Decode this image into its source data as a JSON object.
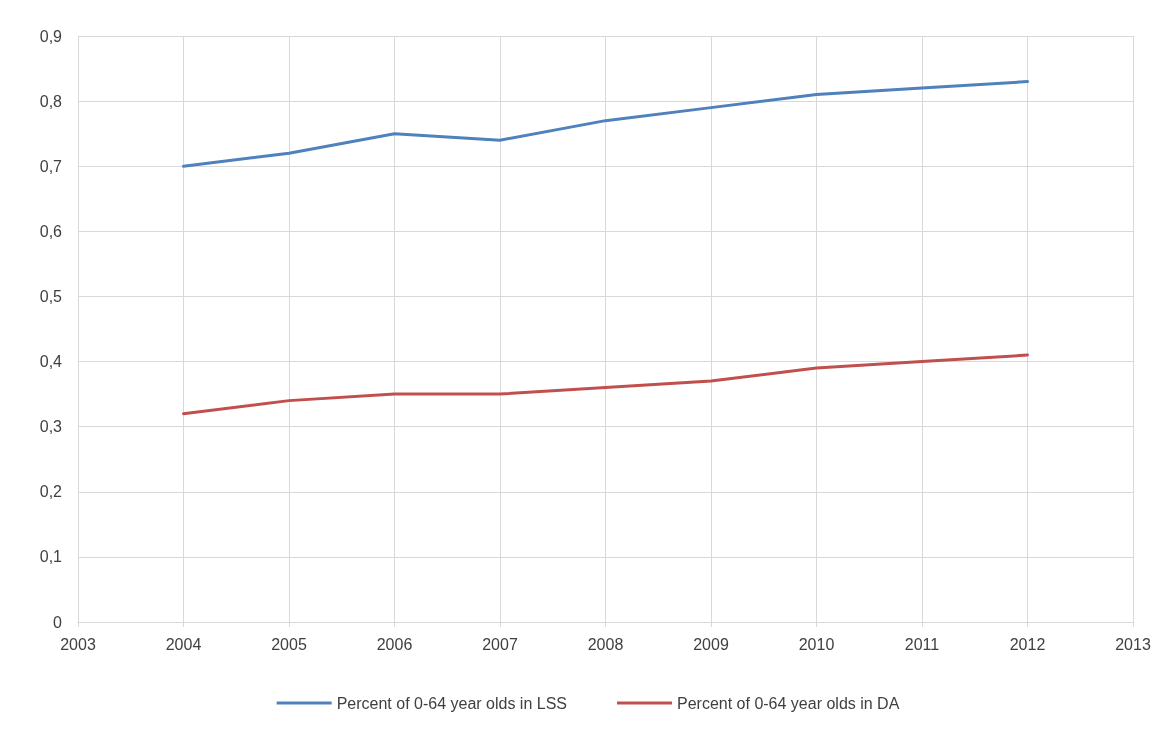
{
  "chart_data": {
    "type": "line",
    "x": [
      2004,
      2005,
      2006,
      2007,
      2008,
      2009,
      2010,
      2011,
      2012
    ],
    "series": [
      {
        "name": "Percent of 0-64 year olds in LSS",
        "color": "#4f81bd",
        "values": [
          0.7,
          0.72,
          0.75,
          0.74,
          0.77,
          0.79,
          0.81,
          0.82,
          0.83
        ]
      },
      {
        "name": "Percent of 0-64 year olds in DA",
        "color": "#c0504d",
        "values": [
          0.32,
          0.34,
          0.35,
          0.35,
          0.36,
          0.37,
          0.39,
          0.4,
          0.41
        ]
      }
    ],
    "xlim": [
      2003,
      2013
    ],
    "xticks": [
      2003,
      2004,
      2005,
      2006,
      2007,
      2008,
      2009,
      2010,
      2011,
      2012,
      2013
    ],
    "ylim": [
      0,
      0.9
    ],
    "yticks": [
      0,
      {
        "value": 0.1,
        "label": "0,1"
      },
      {
        "value": 0.2,
        "label": "0,2"
      },
      {
        "value": 0.3,
        "label": "0,3"
      },
      {
        "value": 0.4,
        "label": "0,4"
      },
      {
        "value": 0.5,
        "label": "0,5"
      },
      {
        "value": 0.6,
        "label": "0,6"
      },
      {
        "value": 0.7,
        "label": "0,7"
      },
      {
        "value": 0.8,
        "label": "0,8"
      },
      {
        "value": 0.9,
        "label": "0,9"
      }
    ],
    "grid": true,
    "legend": "bottom",
    "marker": "none",
    "line_style": "solid"
  }
}
